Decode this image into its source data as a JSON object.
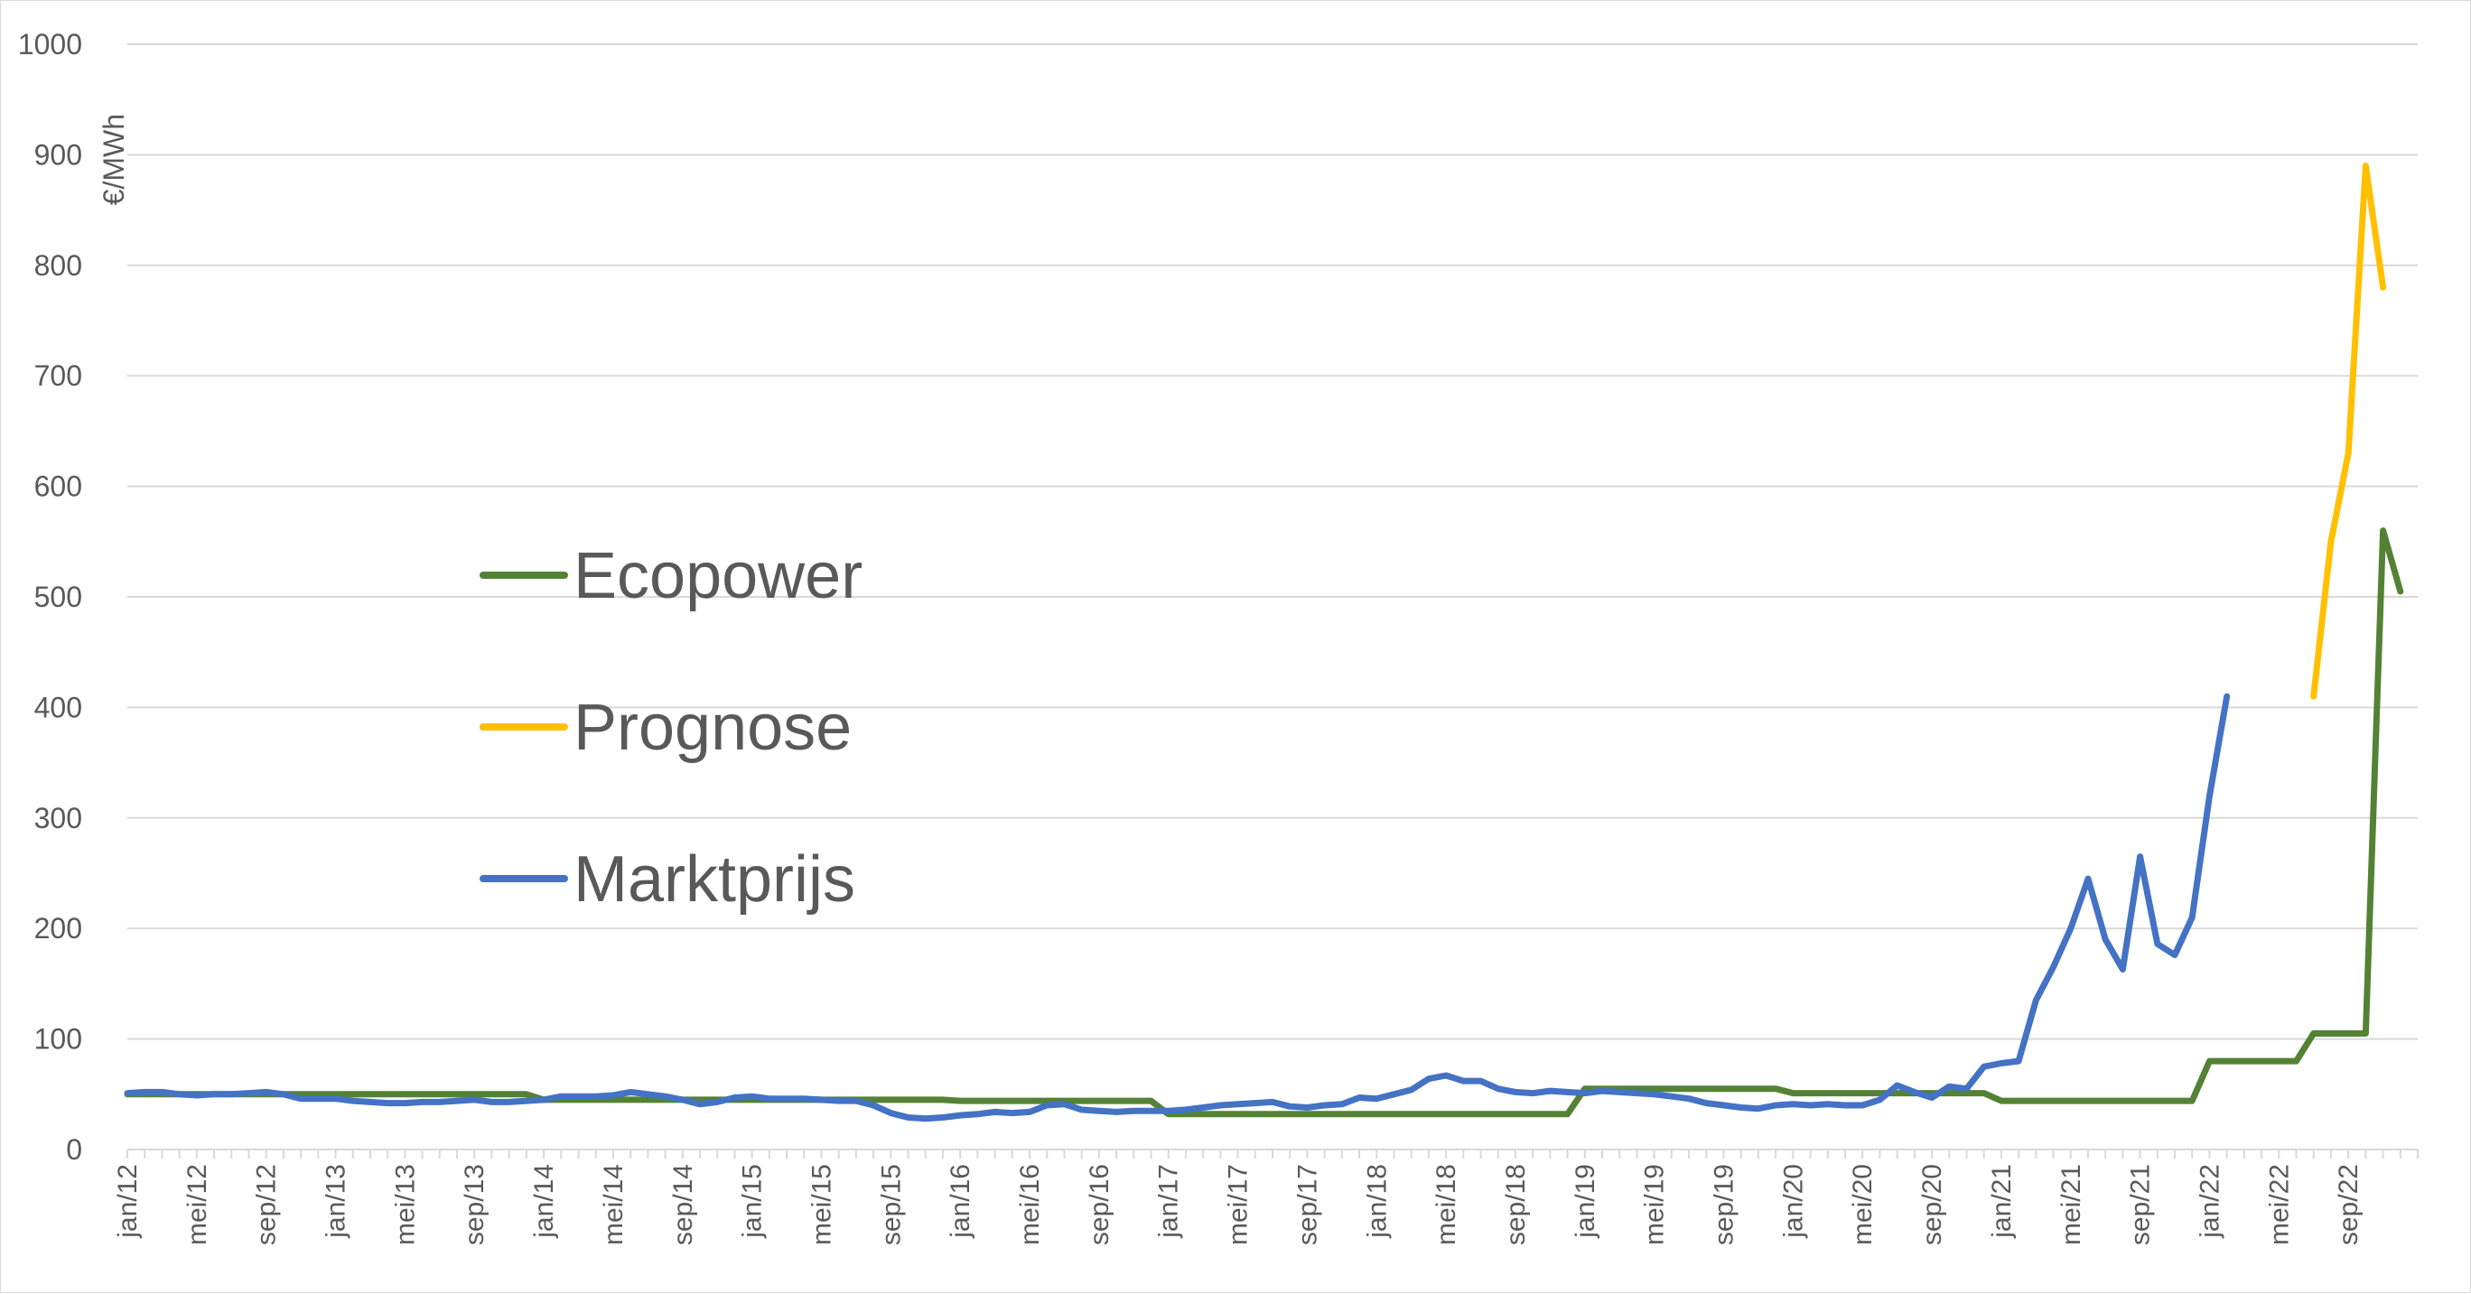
{
  "chart_data": {
    "type": "line",
    "ylabel": "€/MWh",
    "ylim": [
      0,
      1000
    ],
    "yticks": [
      0,
      100,
      200,
      300,
      400,
      500,
      600,
      700,
      800,
      900,
      1000
    ],
    "grid": true,
    "legend_position": "left",
    "x_start": "jan/12",
    "xtick_labels": [
      "jan/12",
      "mei/12",
      "sep/12",
      "jan/13",
      "mei/13",
      "sep/13",
      "jan/14",
      "mei/14",
      "sep/14",
      "jan/15",
      "mei/15",
      "sep/15",
      "jan/16",
      "mei/16",
      "sep/16",
      "jan/17",
      "mei/17",
      "sep/17",
      "jan/18",
      "mei/18",
      "sep/18",
      "jan/19",
      "mei/19",
      "sep/19",
      "jan/20",
      "mei/20",
      "sep/20",
      "jan/21",
      "mei/21",
      "sep/21",
      "jan/22",
      "mei/22",
      "sep/22"
    ],
    "series": [
      {
        "name": "Ecopower",
        "color": "#548235",
        "values": [
          50,
          50,
          50,
          50,
          50,
          50,
          50,
          50,
          50,
          50,
          50,
          50,
          50,
          50,
          50,
          50,
          50,
          50,
          50,
          50,
          50,
          50,
          50,
          50,
          45,
          45,
          45,
          45,
          45,
          45,
          45,
          45,
          45,
          45,
          45,
          45,
          45,
          45,
          45,
          45,
          45,
          45,
          45,
          45,
          45,
          45,
          45,
          45,
          44,
          44,
          44,
          44,
          44,
          44,
          44,
          44,
          44,
          44,
          44,
          44,
          32,
          32,
          32,
          32,
          32,
          32,
          32,
          32,
          32,
          32,
          32,
          32,
          32,
          32,
          32,
          32,
          32,
          32,
          32,
          32,
          32,
          32,
          32,
          32,
          55,
          55,
          55,
          55,
          55,
          55,
          55,
          55,
          55,
          55,
          55,
          55,
          51,
          51,
          51,
          51,
          51,
          51,
          51,
          51,
          51,
          51,
          51,
          51,
          44,
          44,
          44,
          44,
          44,
          44,
          44,
          44,
          44,
          44,
          44,
          44,
          80,
          80,
          80,
          80,
          80,
          80,
          105,
          105,
          105,
          105,
          560,
          505
        ]
      },
      {
        "name": "Prognose",
        "color": "#FFC000",
        "start_index": 126,
        "values": [
          410,
          550,
          630,
          890,
          780
        ]
      },
      {
        "name": "Marktprijs",
        "color": "#4472C4",
        "values": [
          51,
          52,
          52,
          50,
          49,
          50,
          50,
          51,
          52,
          50,
          46,
          46,
          46,
          44,
          43,
          42,
          42,
          43,
          43,
          44,
          45,
          43,
          43,
          44,
          45,
          48,
          48,
          48,
          49,
          52,
          50,
          48,
          45,
          41,
          43,
          47,
          48,
          46,
          46,
          46,
          45,
          44,
          44,
          40,
          33,
          29,
          28,
          29,
          31,
          32,
          34,
          33,
          34,
          40,
          41,
          36,
          35,
          34,
          35,
          35,
          35,
          36,
          38,
          40,
          41,
          42,
          43,
          39,
          38,
          40,
          41,
          47,
          46,
          50,
          54,
          64,
          67,
          62,
          62,
          55,
          52,
          51,
          53,
          52,
          51,
          53,
          52,
          51,
          50,
          48,
          46,
          42,
          40,
          38,
          37,
          40,
          41,
          40,
          41,
          40,
          40,
          45,
          58,
          52,
          47,
          57,
          55,
          75,
          78,
          80,
          135,
          165,
          200,
          245,
          190,
          163,
          265,
          186,
          176,
          210,
          320,
          410
        ]
      }
    ]
  }
}
